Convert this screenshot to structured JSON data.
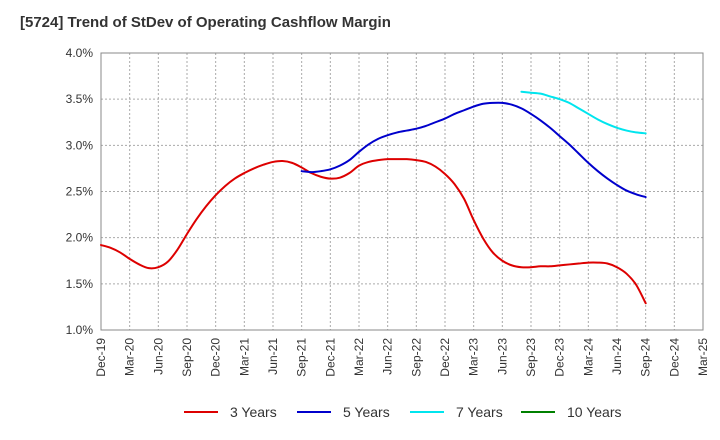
{
  "chart_data": {
    "type": "line",
    "title": "[5724]  Trend of StDev of Operating Cashflow Margin",
    "xlabel": "",
    "ylabel": "",
    "x_tick_labels": [
      "Dec-19",
      "Mar-20",
      "Jun-20",
      "Sep-20",
      "Dec-20",
      "Mar-21",
      "Jun-21",
      "Sep-21",
      "Dec-21",
      "Mar-22",
      "Jun-22",
      "Sep-22",
      "Dec-22",
      "Mar-23",
      "Jun-23",
      "Sep-23",
      "Dec-23",
      "Mar-24",
      "Jun-24",
      "Sep-24",
      "Dec-24",
      "Mar-25"
    ],
    "y_tick_labels": [
      "1.0%",
      "1.5%",
      "2.0%",
      "2.5%",
      "3.0%",
      "3.5%",
      "4.0%"
    ],
    "ylim": [
      1.0,
      4.0
    ],
    "grid": true,
    "legend_position": "bottom",
    "series": [
      {
        "name": "3 Years",
        "color": "#dd0000",
        "points": [
          [
            "Dec-19",
            1.92
          ],
          [
            "Jan-20",
            1.89
          ],
          [
            "Feb-20",
            1.84
          ],
          [
            "Mar-20",
            1.77
          ],
          [
            "Apr-20",
            1.71
          ],
          [
            "May-20",
            1.67
          ],
          [
            "Jun-20",
            1.68
          ],
          [
            "Jul-20",
            1.74
          ],
          [
            "Aug-20",
            1.87
          ],
          [
            "Sep-20",
            2.04
          ],
          [
            "Oct-20",
            2.2
          ],
          [
            "Nov-20",
            2.34
          ],
          [
            "Dec-20",
            2.46
          ],
          [
            "Jan-21",
            2.56
          ],
          [
            "Feb-21",
            2.64
          ],
          [
            "Mar-21",
            2.7
          ],
          [
            "Apr-21",
            2.75
          ],
          [
            "May-21",
            2.79
          ],
          [
            "Jun-21",
            2.82
          ],
          [
            "Jul-21",
            2.83
          ],
          [
            "Aug-21",
            2.81
          ],
          [
            "Sep-21",
            2.76
          ],
          [
            "Oct-21",
            2.7
          ],
          [
            "Nov-21",
            2.66
          ],
          [
            "Dec-21",
            2.64
          ],
          [
            "Jan-22",
            2.65
          ],
          [
            "Feb-22",
            2.7
          ],
          [
            "Mar-22",
            2.78
          ],
          [
            "Apr-22",
            2.82
          ],
          [
            "May-22",
            2.84
          ],
          [
            "Jun-22",
            2.85
          ],
          [
            "Jul-22",
            2.85
          ],
          [
            "Aug-22",
            2.85
          ],
          [
            "Sep-22",
            2.84
          ],
          [
            "Oct-22",
            2.82
          ],
          [
            "Nov-22",
            2.77
          ],
          [
            "Dec-22",
            2.69
          ],
          [
            "Jan-23",
            2.58
          ],
          [
            "Feb-23",
            2.42
          ],
          [
            "Mar-23",
            2.19
          ],
          [
            "Apr-23",
            1.99
          ],
          [
            "May-23",
            1.84
          ],
          [
            "Jun-23",
            1.75
          ],
          [
            "Jul-23",
            1.7
          ],
          [
            "Aug-23",
            1.68
          ],
          [
            "Sep-23",
            1.68
          ],
          [
            "Oct-23",
            1.69
          ],
          [
            "Nov-23",
            1.69
          ],
          [
            "Dec-23",
            1.7
          ],
          [
            "Jan-24",
            1.71
          ],
          [
            "Feb-24",
            1.72
          ],
          [
            "Mar-24",
            1.73
          ],
          [
            "Apr-24",
            1.73
          ],
          [
            "May-24",
            1.72
          ],
          [
            "Jun-24",
            1.68
          ],
          [
            "Jul-24",
            1.61
          ],
          [
            "Aug-24",
            1.49
          ],
          [
            "Sep-24",
            1.29
          ]
        ]
      },
      {
        "name": "5 Years",
        "color": "#0000cc",
        "points": [
          [
            "Sep-21",
            2.72
          ],
          [
            "Oct-21",
            2.71
          ],
          [
            "Nov-21",
            2.72
          ],
          [
            "Dec-21",
            2.74
          ],
          [
            "Jan-22",
            2.78
          ],
          [
            "Feb-22",
            2.84
          ],
          [
            "Mar-22",
            2.93
          ],
          [
            "Apr-22",
            3.01
          ],
          [
            "May-22",
            3.07
          ],
          [
            "Jun-22",
            3.11
          ],
          [
            "Jul-22",
            3.14
          ],
          [
            "Aug-22",
            3.16
          ],
          [
            "Sep-22",
            3.18
          ],
          [
            "Oct-22",
            3.21
          ],
          [
            "Nov-22",
            3.25
          ],
          [
            "Dec-22",
            3.29
          ],
          [
            "Jan-23",
            3.34
          ],
          [
            "Feb-23",
            3.38
          ],
          [
            "Mar-23",
            3.42
          ],
          [
            "Apr-23",
            3.45
          ],
          [
            "May-23",
            3.46
          ],
          [
            "Jun-23",
            3.46
          ],
          [
            "Jul-23",
            3.44
          ],
          [
            "Aug-23",
            3.4
          ],
          [
            "Sep-23",
            3.34
          ],
          [
            "Oct-23",
            3.27
          ],
          [
            "Nov-23",
            3.19
          ],
          [
            "Dec-23",
            3.1
          ],
          [
            "Jan-24",
            3.01
          ],
          [
            "Feb-24",
            2.91
          ],
          [
            "Mar-24",
            2.81
          ],
          [
            "Apr-24",
            2.72
          ],
          [
            "May-24",
            2.64
          ],
          [
            "Jun-24",
            2.57
          ],
          [
            "Jul-24",
            2.51
          ],
          [
            "Aug-24",
            2.47
          ],
          [
            "Sep-24",
            2.44
          ]
        ]
      },
      {
        "name": "7 Years",
        "color": "#00e5ee",
        "points": [
          [
            "Aug-23",
            3.58
          ],
          [
            "Sep-23",
            3.57
          ],
          [
            "Oct-23",
            3.56
          ],
          [
            "Nov-23",
            3.53
          ],
          [
            "Dec-23",
            3.5
          ],
          [
            "Jan-24",
            3.46
          ],
          [
            "Feb-24",
            3.4
          ],
          [
            "Mar-24",
            3.34
          ],
          [
            "Apr-24",
            3.28
          ],
          [
            "May-24",
            3.23
          ],
          [
            "Jun-24",
            3.19
          ],
          [
            "Jul-24",
            3.16
          ],
          [
            "Aug-24",
            3.14
          ],
          [
            "Sep-24",
            3.13
          ]
        ]
      },
      {
        "name": "10 Years",
        "color": "#008000",
        "points": []
      }
    ]
  }
}
